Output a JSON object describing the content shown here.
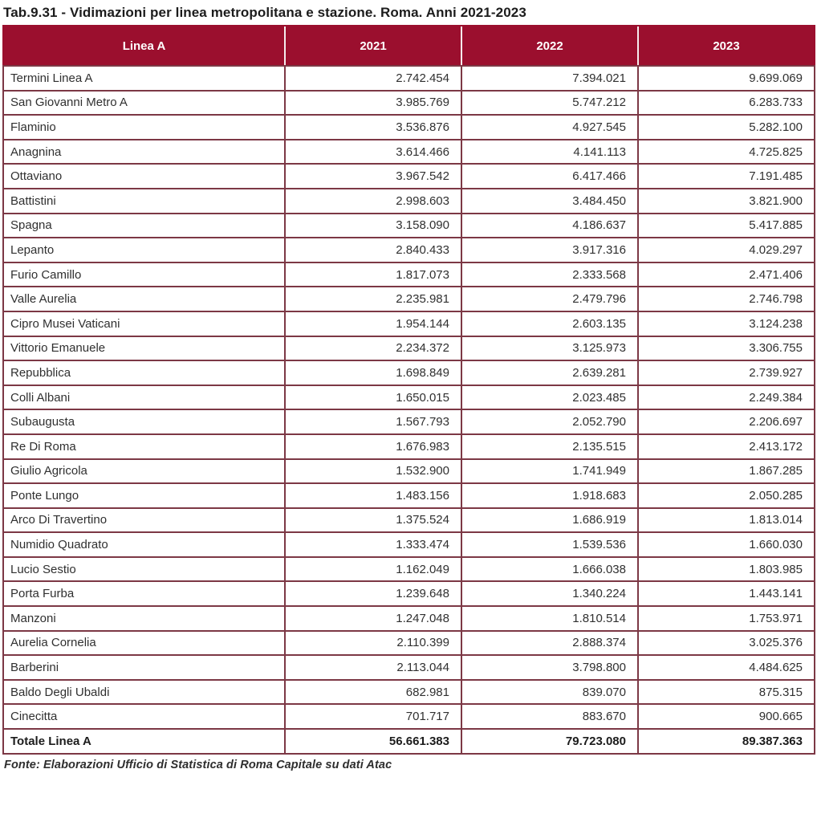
{
  "title": "Tab.9.31 - Vidimazioni per linea metropolitana e stazione. Roma. Anni 2021-2023",
  "footer": "Fonte: Elaborazioni Ufficio di Statistica di Roma Capitale su dati Atac",
  "colors": {
    "header_bg": "#9B0F2E",
    "header_text": "#FFFFFF",
    "border": "#7C3845",
    "body_text": "#303030"
  },
  "table": {
    "columns": [
      "Linea A",
      "2021",
      "2022",
      "2023"
    ],
    "rows": [
      {
        "station": "Termini Linea A",
        "v2021": "2.742.454",
        "v2022": "7.394.021",
        "v2023": "9.699.069"
      },
      {
        "station": "San Giovanni Metro A",
        "v2021": "3.985.769",
        "v2022": "5.747.212",
        "v2023": "6.283.733"
      },
      {
        "station": "Flaminio",
        "v2021": "3.536.876",
        "v2022": "4.927.545",
        "v2023": "5.282.100"
      },
      {
        "station": "Anagnina",
        "v2021": "3.614.466",
        "v2022": "4.141.113",
        "v2023": "4.725.825"
      },
      {
        "station": "Ottaviano",
        "v2021": "3.967.542",
        "v2022": "6.417.466",
        "v2023": "7.191.485"
      },
      {
        "station": "Battistini",
        "v2021": "2.998.603",
        "v2022": "3.484.450",
        "v2023": "3.821.900"
      },
      {
        "station": "Spagna",
        "v2021": "3.158.090",
        "v2022": "4.186.637",
        "v2023": "5.417.885"
      },
      {
        "station": "Lepanto",
        "v2021": "2.840.433",
        "v2022": "3.917.316",
        "v2023": "4.029.297"
      },
      {
        "station": "Furio Camillo",
        "v2021": "1.817.073",
        "v2022": "2.333.568",
        "v2023": "2.471.406"
      },
      {
        "station": "Valle Aurelia",
        "v2021": "2.235.981",
        "v2022": "2.479.796",
        "v2023": "2.746.798"
      },
      {
        "station": "Cipro Musei Vaticani",
        "v2021": "1.954.144",
        "v2022": "2.603.135",
        "v2023": "3.124.238"
      },
      {
        "station": "Vittorio Emanuele",
        "v2021": "2.234.372",
        "v2022": "3.125.973",
        "v2023": "3.306.755"
      },
      {
        "station": "Repubblica",
        "v2021": "1.698.849",
        "v2022": "2.639.281",
        "v2023": "2.739.927"
      },
      {
        "station": "Colli Albani",
        "v2021": "1.650.015",
        "v2022": "2.023.485",
        "v2023": "2.249.384"
      },
      {
        "station": "Subaugusta",
        "v2021": "1.567.793",
        "v2022": "2.052.790",
        "v2023": "2.206.697"
      },
      {
        "station": "Re Di Roma",
        "v2021": "1.676.983",
        "v2022": "2.135.515",
        "v2023": "2.413.172"
      },
      {
        "station": "Giulio Agricola",
        "v2021": "1.532.900",
        "v2022": "1.741.949",
        "v2023": "1.867.285"
      },
      {
        "station": "Ponte Lungo",
        "v2021": "1.483.156",
        "v2022": "1.918.683",
        "v2023": "2.050.285"
      },
      {
        "station": "Arco Di Travertino",
        "v2021": "1.375.524",
        "v2022": "1.686.919",
        "v2023": "1.813.014"
      },
      {
        "station": "Numidio Quadrato",
        "v2021": "1.333.474",
        "v2022": "1.539.536",
        "v2023": "1.660.030"
      },
      {
        "station": "Lucio Sestio",
        "v2021": "1.162.049",
        "v2022": "1.666.038",
        "v2023": "1.803.985"
      },
      {
        "station": "Porta Furba",
        "v2021": "1.239.648",
        "v2022": "1.340.224",
        "v2023": "1.443.141"
      },
      {
        "station": "Manzoni",
        "v2021": "1.247.048",
        "v2022": "1.810.514",
        "v2023": "1.753.971"
      },
      {
        "station": "Aurelia Cornelia",
        "v2021": "2.110.399",
        "v2022": "2.888.374",
        "v2023": "3.025.376"
      },
      {
        "station": "Barberini",
        "v2021": "2.113.044",
        "v2022": "3.798.800",
        "v2023": "4.484.625"
      },
      {
        "station": "Baldo Degli Ubaldi",
        "v2021": "682.981",
        "v2022": "839.070",
        "v2023": "875.315"
      },
      {
        "station": "Cinecitta",
        "v2021": "701.717",
        "v2022": "883.670",
        "v2023": "900.665"
      }
    ],
    "total": {
      "station": "Totale Linea A",
      "v2021": "56.661.383",
      "v2022": "79.723.080",
      "v2023": "89.387.363"
    }
  }
}
